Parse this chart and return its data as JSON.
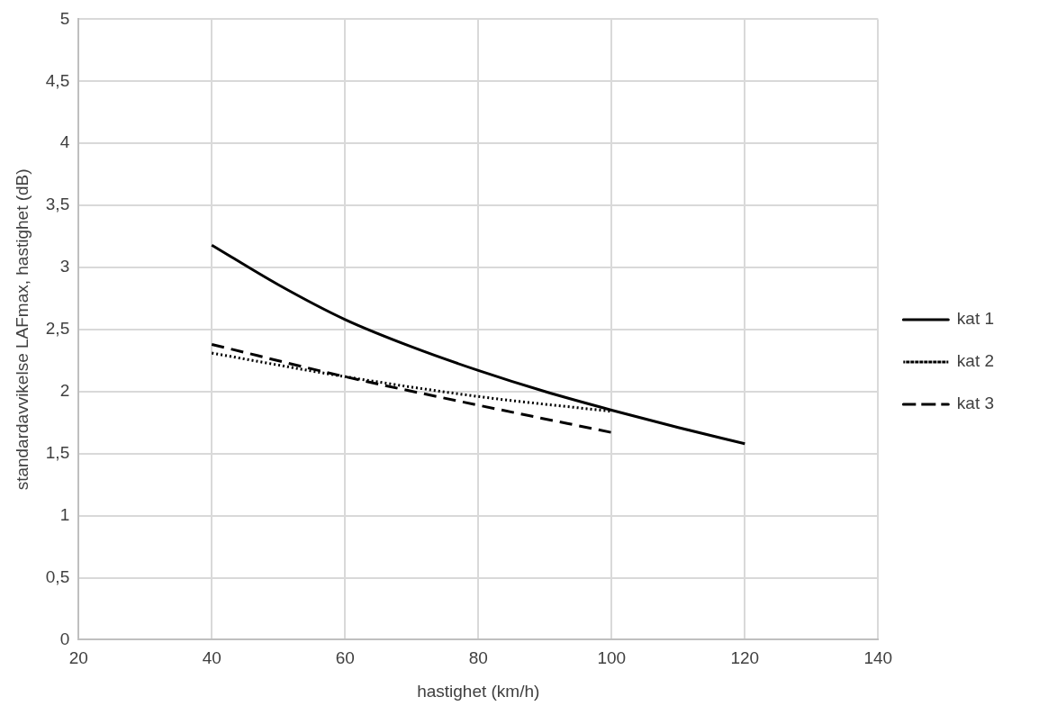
{
  "chart_data": {
    "type": "line",
    "xlabel": "hastighet (km/h)",
    "ylabel": "standardavvikelse LAFmax, hastighet (dB)",
    "xlim": [
      20,
      140
    ],
    "xticks": [
      20,
      40,
      60,
      80,
      100,
      120,
      140
    ],
    "ylim": [
      0,
      5
    ],
    "yticks": [
      0,
      {
        "value": 0.5,
        "label": "0,5"
      },
      1,
      {
        "value": 1.5,
        "label": "1,5"
      },
      2,
      {
        "value": 2.5,
        "label": "2,5"
      },
      3,
      {
        "value": 3.5,
        "label": "3,5"
      },
      4,
      {
        "value": 4.5,
        "label": "4,5"
      },
      5
    ],
    "grid": true,
    "legend": "right",
    "marker": "none",
    "series": [
      {
        "name": "kat 1",
        "color": "#000000",
        "line_style": "solid",
        "x": [
          40,
          50,
          60,
          70,
          80,
          90,
          100,
          110,
          120
        ],
        "values": [
          3.18,
          2.86,
          2.58,
          2.36,
          2.17,
          2.0,
          1.85,
          1.71,
          1.58
        ]
      },
      {
        "name": "kat 2",
        "color": "#000000",
        "line_style": "dotted",
        "x": [
          40,
          60,
          80,
          100
        ],
        "values": [
          2.31,
          2.12,
          1.96,
          1.84
        ]
      },
      {
        "name": "kat 3",
        "color": "#000000",
        "line_style": "dashed",
        "x": [
          40,
          60,
          80,
          100
        ],
        "values": [
          2.38,
          2.12,
          1.89,
          1.67
        ]
      }
    ]
  }
}
